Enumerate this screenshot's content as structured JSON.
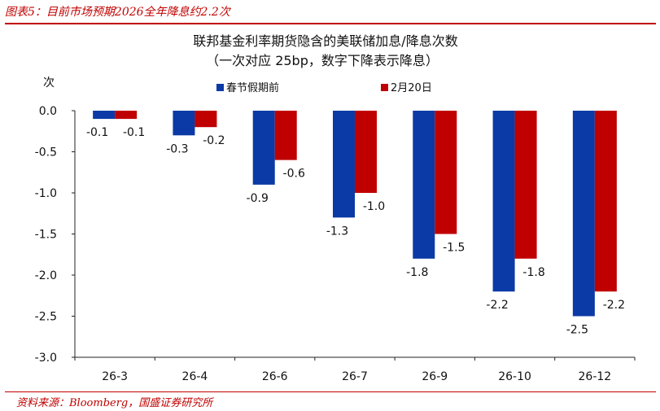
{
  "figure_label": "图表5：目前市场预期2026全年降息约2.2次",
  "source_note": "资料来源：Bloomberg，国盛证券研究所",
  "chart_data": {
    "type": "bar",
    "title": "联邦基金利率期货隐含的美联储加息/降息次数",
    "subtitle": "（一次对应 25bp，数字下降表示降息）",
    "ylabel": "次",
    "xlabel": "",
    "categories": [
      "26-3",
      "26-4",
      "26-6",
      "26-7",
      "26-9",
      "26-10",
      "26-12"
    ],
    "series": [
      {
        "name": "春节假期前",
        "color": "#0b3aa6",
        "values": [
          -0.1,
          -0.3,
          -0.9,
          -1.3,
          -1.8,
          -2.2,
          -2.5
        ]
      },
      {
        "name": "2月20日",
        "color": "#c00000",
        "values": [
          -0.1,
          -0.2,
          -0.6,
          -1.0,
          -1.5,
          -1.8,
          -2.2
        ]
      }
    ],
    "ylim": [
      -3.0,
      0.0
    ],
    "yticks": [
      "0.0",
      "-0.5",
      "-1.0",
      "-1.5",
      "-2.0",
      "-2.5",
      "-3.0"
    ],
    "data_labels": [
      [
        "-0.1",
        "-0.3",
        "-0.9",
        "-1.3",
        "-1.8",
        "-2.2",
        "-2.5"
      ],
      [
        "-0.1",
        "-0.2",
        "-0.6",
        "-1.0",
        "-1.5",
        "-1.8",
        "-2.2"
      ]
    ],
    "grid": false,
    "legend_position": "top"
  }
}
